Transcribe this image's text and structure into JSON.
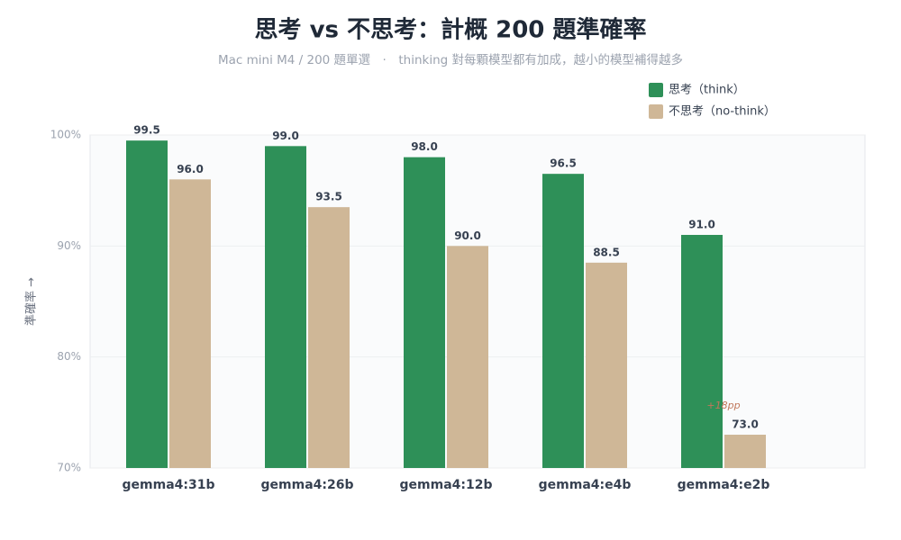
{
  "chart_data": {
    "type": "bar",
    "title": "思考 vs 不思考：計概 200 題準確率",
    "subtitle": "Mac mini M4 / 200 題單選　·　thinking 對每顆模型都有加成，越小的模型補得越多",
    "y_label": "準確率 →",
    "categories": [
      "gemma4:31b",
      "gemma4:26b",
      "gemma4:12b",
      "gemma4:e4b",
      "gemma4:e2b"
    ],
    "series": [
      {
        "name": "思考（think）",
        "color": "#2e9058",
        "values": [
          99.5,
          99,
          98,
          96.5,
          91
        ],
        "value_labels": [
          "99.5",
          "99.0",
          "98.0",
          "96.5",
          "91.0"
        ]
      },
      {
        "name": "不思考（no-think）",
        "color": "#cfb797",
        "values": [
          96,
          93.5,
          90,
          88.5,
          73
        ],
        "value_labels": [
          "96.0",
          "93.5",
          "90.0",
          "88.5",
          "73.0"
        ]
      }
    ],
    "annotation": "+18pp",
    "ylim": [
      70,
      100
    ],
    "yticks": [
      {
        "value": 70,
        "label": "70%"
      },
      {
        "value": 80,
        "label": "80%"
      },
      {
        "value": 90,
        "label": "90%"
      },
      {
        "value": 100,
        "label": "100%"
      }
    ],
    "grid": true,
    "legend": "top-right"
  }
}
